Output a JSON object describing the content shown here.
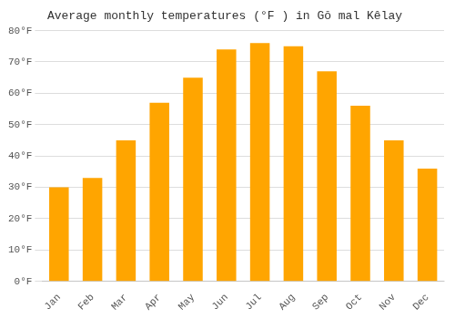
{
  "chart_data": {
    "type": "bar",
    "title": "Average monthly temperatures (°F ) in Gŏ mal Kêlay",
    "categories": [
      "Jan",
      "Feb",
      "Mar",
      "Apr",
      "May",
      "Jun",
      "Jul",
      "Aug",
      "Sep",
      "Oct",
      "Nov",
      "Dec"
    ],
    "values": [
      30,
      33,
      45,
      57,
      65,
      74,
      76,
      75,
      67,
      56,
      45,
      36
    ],
    "color": "#FFA500",
    "ylim": [
      0,
      80
    ],
    "yticks": [
      {
        "value": 0,
        "label": "0°F"
      },
      {
        "value": 10,
        "label": "10°F"
      },
      {
        "value": 20,
        "label": "20°F"
      },
      {
        "value": 30,
        "label": "30°F"
      },
      {
        "value": 40,
        "label": "40°F"
      },
      {
        "value": 50,
        "label": "50°F"
      },
      {
        "value": 60,
        "label": "60°F"
      },
      {
        "value": 70,
        "label": "70°F"
      },
      {
        "value": 80,
        "label": "80°F"
      }
    ],
    "grid": true
  }
}
